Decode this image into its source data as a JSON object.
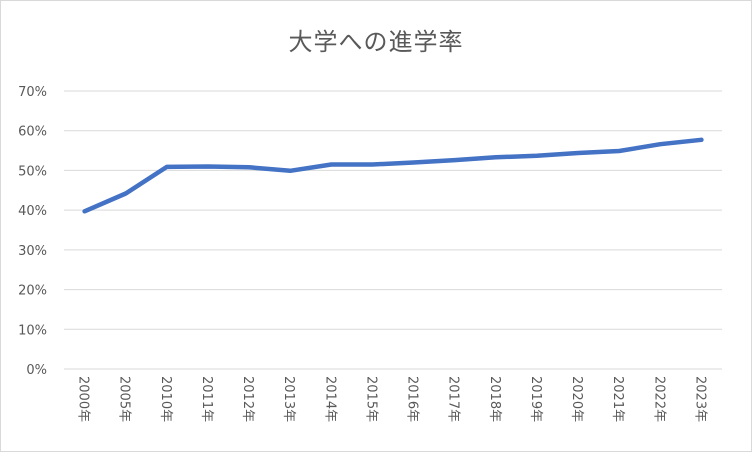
{
  "chart_data": {
    "type": "line",
    "title": "大学への進学率",
    "xlabel": "",
    "ylabel": "",
    "categories": [
      "2000年",
      "2005年",
      "2010年",
      "2011年",
      "2012年",
      "2013年",
      "2014年",
      "2015年",
      "2016年",
      "2017年",
      "2018年",
      "2019年",
      "2020年",
      "2021年",
      "2022年",
      "2023年"
    ],
    "series": [
      {
        "name": "大学への進学率",
        "values": [
          39.7,
          44.2,
          50.9,
          51.0,
          50.8,
          49.9,
          51.5,
          51.5,
          52.0,
          52.6,
          53.3,
          53.7,
          54.4,
          54.9,
          56.6,
          57.7
        ],
        "color": "#4472C4"
      }
    ],
    "ylim": [
      0,
      70
    ],
    "yticks": [
      "0%",
      "10%",
      "20%",
      "30%",
      "40%",
      "50%",
      "60%",
      "70%"
    ],
    "grid": true,
    "legend": "none"
  }
}
